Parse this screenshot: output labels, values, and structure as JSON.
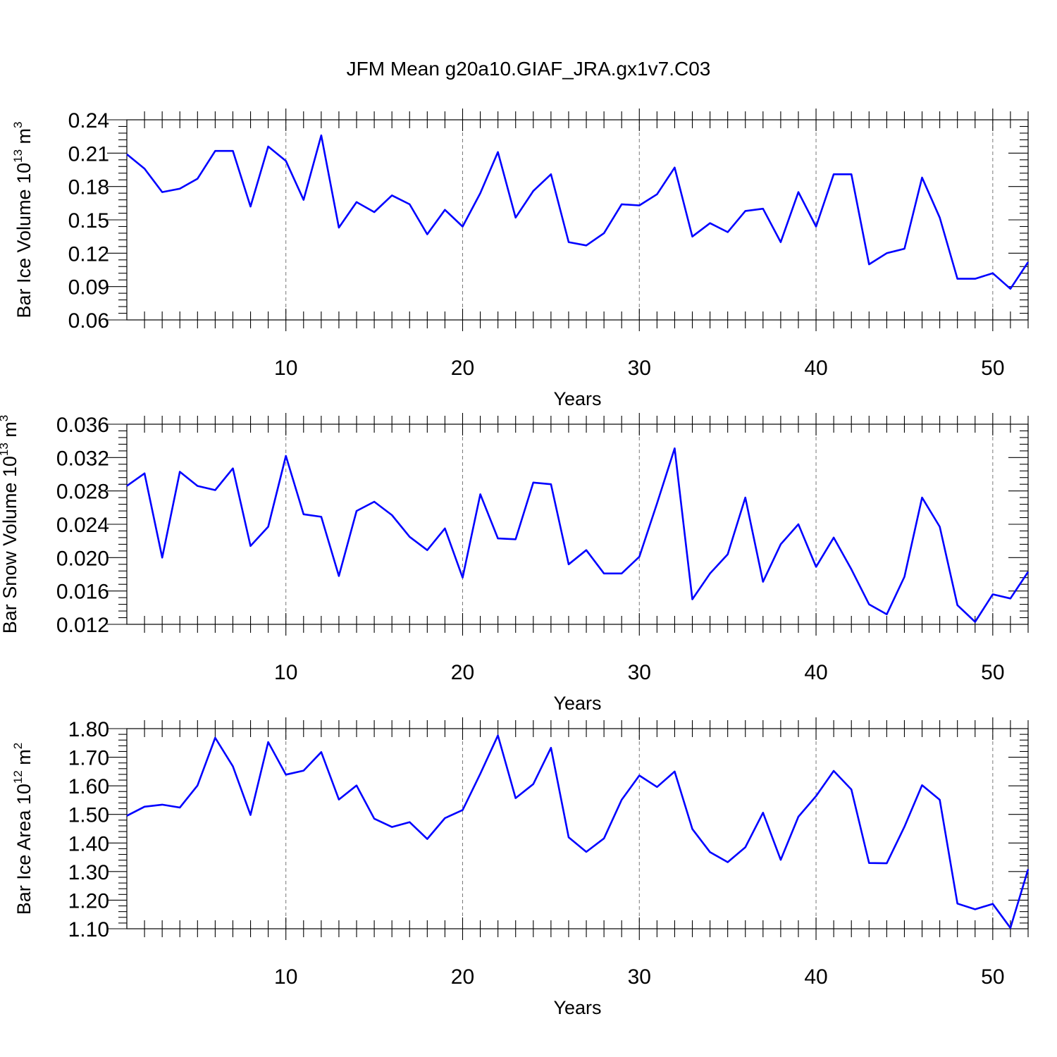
{
  "title": "JFM Mean g20a10.GIAF_JRA.gx1v7.C03",
  "colors": {
    "line": "#0000ff",
    "grid": "#777777",
    "axis": "#000000"
  },
  "chart_data": [
    {
      "type": "line",
      "xlabel": "Years",
      "ylabel": {
        "base": "Bar Ice Volume 10",
        "exp": "13",
        "unit": " m",
        "unit_exp": "3"
      },
      "xlim": [
        1,
        52
      ],
      "ylim": [
        0.06,
        0.24
      ],
      "x_ticks": [
        10,
        20,
        30,
        40,
        50
      ],
      "y_ticks": [
        0.06,
        0.09,
        0.12,
        0.15,
        0.18,
        0.21,
        0.24
      ],
      "y_tick_labels": [
        "0.06",
        "0.09",
        "0.12",
        "0.15",
        "0.18",
        "0.21",
        "0.24"
      ],
      "y_minor": 5,
      "grid": "vertical dashed at major x ticks",
      "x": [
        1,
        2,
        3,
        4,
        5,
        6,
        7,
        8,
        9,
        10,
        11,
        12,
        13,
        14,
        15,
        16,
        17,
        18,
        19,
        20,
        21,
        22,
        23,
        24,
        25,
        26,
        27,
        28,
        29,
        30,
        31,
        32,
        33,
        34,
        35,
        36,
        37,
        38,
        39,
        40,
        41,
        42,
        43,
        44,
        45,
        46,
        47,
        48,
        49,
        50,
        51,
        52
      ],
      "series": [
        {
          "values": [
            0.209,
            0.196,
            0.175,
            0.178,
            0.187,
            0.212,
            0.212,
            0.162,
            0.216,
            0.203,
            0.168,
            0.226,
            0.143,
            0.166,
            0.157,
            0.172,
            0.164,
            0.137,
            0.159,
            0.144,
            0.174,
            0.211,
            0.152,
            0.176,
            0.191,
            0.13,
            0.127,
            0.138,
            0.164,
            0.163,
            0.173,
            0.197,
            0.135,
            0.147,
            0.139,
            0.158,
            0.16,
            0.13,
            0.175,
            0.144,
            0.191,
            0.191,
            0.11,
            0.12,
            0.124,
            0.188,
            0.152,
            0.097,
            0.097,
            0.102,
            0.088,
            0.112
          ]
        }
      ]
    },
    {
      "type": "line",
      "xlabel": "Years",
      "ylabel": {
        "base": "Bar Snow Volume 10",
        "exp": "13",
        "unit": " m",
        "unit_exp": "3"
      },
      "xlim": [
        1,
        52
      ],
      "ylim": [
        0.012,
        0.036
      ],
      "x_ticks": [
        10,
        20,
        30,
        40,
        50
      ],
      "y_ticks": [
        0.012,
        0.016,
        0.02,
        0.024,
        0.028,
        0.032,
        0.036
      ],
      "y_tick_labels": [
        "0.012",
        "0.016",
        "0.020",
        "0.024",
        "0.028",
        "0.032",
        "0.036"
      ],
      "y_minor": 5,
      "grid": "vertical dashed at major x ticks",
      "x": [
        1,
        2,
        3,
        4,
        5,
        6,
        7,
        8,
        9,
        10,
        11,
        12,
        13,
        14,
        15,
        16,
        17,
        18,
        19,
        20,
        21,
        22,
        23,
        24,
        25,
        26,
        27,
        28,
        29,
        30,
        31,
        32,
        33,
        34,
        35,
        36,
        37,
        38,
        39,
        40,
        41,
        42,
        43,
        44,
        45,
        46,
        47,
        48,
        49,
        50,
        51,
        52
      ],
      "series": [
        {
          "values": [
            0.0286,
            0.0301,
            0.02,
            0.0303,
            0.0286,
            0.0281,
            0.0307,
            0.0214,
            0.0237,
            0.0322,
            0.0252,
            0.0249,
            0.0178,
            0.0256,
            0.0267,
            0.0251,
            0.0225,
            0.0209,
            0.0235,
            0.0176,
            0.0276,
            0.0223,
            0.0222,
            0.029,
            0.0288,
            0.0192,
            0.0209,
            0.0181,
            0.0181,
            0.0201,
            0.0265,
            0.0331,
            0.015,
            0.0181,
            0.0204,
            0.0272,
            0.0171,
            0.0216,
            0.024,
            0.0189,
            0.0224,
            0.0186,
            0.0144,
            0.0132,
            0.0177,
            0.0272,
            0.0237,
            0.0143,
            0.0123,
            0.0156,
            0.0151,
            0.0183
          ]
        }
      ]
    },
    {
      "type": "line",
      "xlabel": "Years",
      "ylabel": {
        "base": "Bar Ice Area 10",
        "exp": "12",
        "unit": " m",
        "unit_exp": "2"
      },
      "xlim": [
        1,
        52
      ],
      "ylim": [
        1.1,
        1.8
      ],
      "x_ticks": [
        10,
        20,
        30,
        40,
        50
      ],
      "y_ticks": [
        1.1,
        1.2,
        1.3,
        1.4,
        1.5,
        1.6,
        1.7,
        1.8
      ],
      "y_tick_labels": [
        "1.10",
        "1.20",
        "1.30",
        "1.40",
        "1.50",
        "1.60",
        "1.70",
        "1.80"
      ],
      "y_minor": 5,
      "grid": "vertical dashed at major x ticks",
      "x": [
        1,
        2,
        3,
        4,
        5,
        6,
        7,
        8,
        9,
        10,
        11,
        12,
        13,
        14,
        15,
        16,
        17,
        18,
        19,
        20,
        21,
        22,
        23,
        24,
        25,
        26,
        27,
        28,
        29,
        30,
        31,
        32,
        33,
        34,
        35,
        36,
        37,
        38,
        39,
        40,
        41,
        42,
        43,
        44,
        45,
        46,
        47,
        48,
        49,
        50,
        51,
        52
      ],
      "series": [
        {
          "values": [
            1.495,
            1.527,
            1.534,
            1.524,
            1.601,
            1.768,
            1.668,
            1.498,
            1.753,
            1.639,
            1.653,
            1.718,
            1.552,
            1.601,
            1.485,
            1.456,
            1.473,
            1.414,
            1.487,
            1.515,
            1.642,
            1.776,
            1.557,
            1.606,
            1.733,
            1.42,
            1.369,
            1.416,
            1.551,
            1.636,
            1.596,
            1.65,
            1.449,
            1.368,
            1.333,
            1.385,
            1.506,
            1.341,
            1.492,
            1.564,
            1.652,
            1.587,
            1.33,
            1.329,
            1.457,
            1.602,
            1.551,
            1.188,
            1.168,
            1.187,
            1.103,
            1.308
          ]
        }
      ]
    }
  ]
}
